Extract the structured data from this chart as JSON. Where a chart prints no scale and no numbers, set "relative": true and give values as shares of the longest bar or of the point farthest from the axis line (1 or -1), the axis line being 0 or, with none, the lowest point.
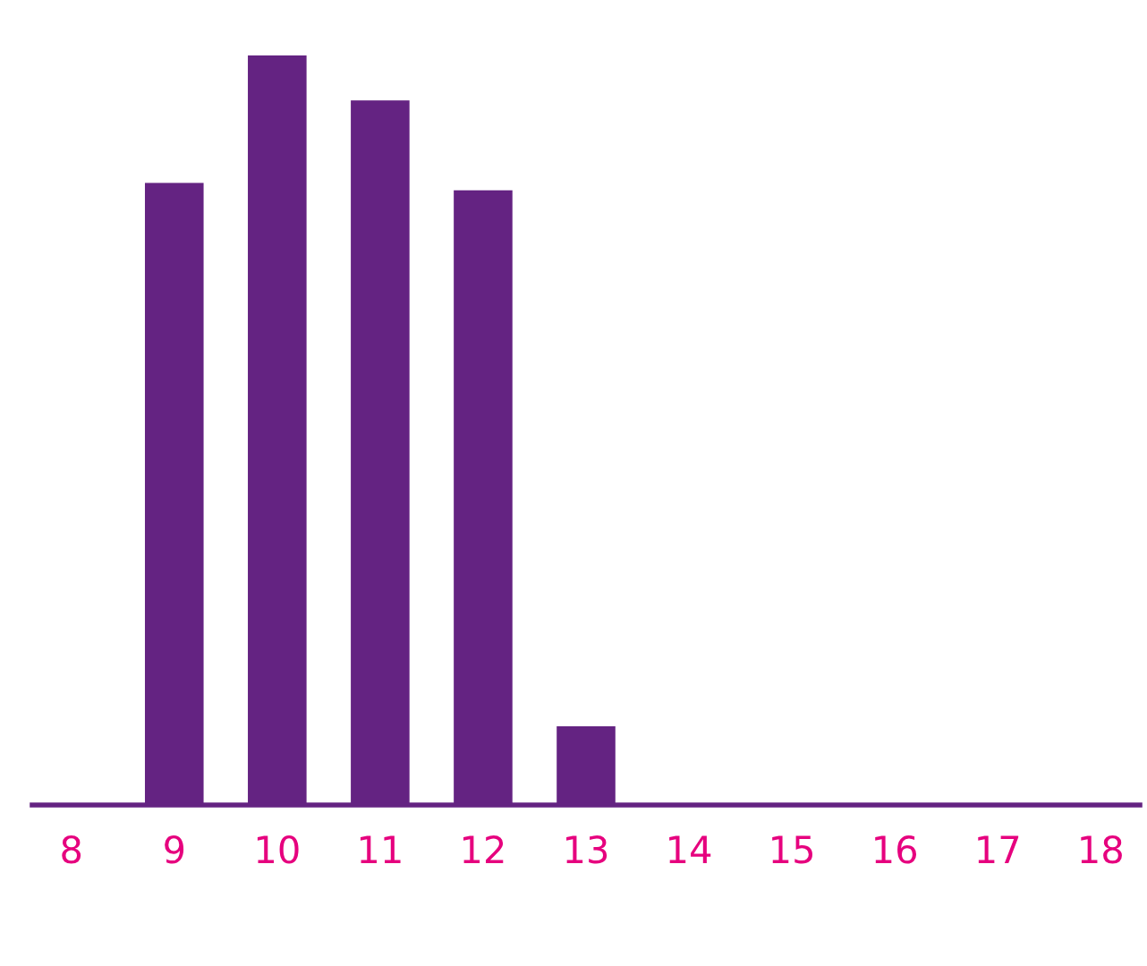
{
  "chart_data": {
    "type": "bar",
    "relative": true,
    "categories": [
      "8",
      "9",
      "10",
      "11",
      "12",
      "13",
      "14",
      "15",
      "16",
      "17",
      "18"
    ],
    "values": [
      0,
      0.83,
      1,
      0.94,
      0.82,
      0.105,
      0,
      0,
      0,
      0,
      0
    ],
    "color": "#642382",
    "grid": false,
    "legend": false
  }
}
